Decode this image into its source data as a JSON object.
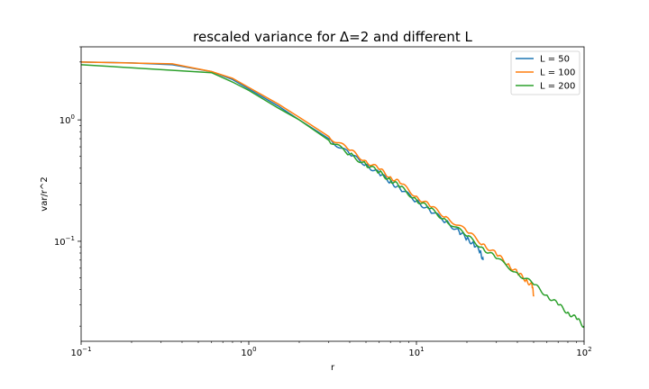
{
  "chart_data": {
    "type": "line",
    "title": "rescaled variance for Δ=2 and different L",
    "xlabel": "r",
    "ylabel": "var/r^2",
    "xscale": "log",
    "yscale": "log",
    "xlim": [
      0.1,
      100
    ],
    "ylim": [
      0.015,
      4.0
    ],
    "x_ticks": [
      {
        "value": 0.1,
        "base": "10",
        "exp": "−1"
      },
      {
        "value": 1,
        "base": "10",
        "exp": "0"
      },
      {
        "value": 10,
        "base": "10",
        "exp": "1"
      },
      {
        "value": 100,
        "base": "10",
        "exp": "2"
      }
    ],
    "y_ticks": [
      {
        "value": 0.1,
        "base": "10",
        "exp": "−1"
      },
      {
        "value": 1,
        "base": "10",
        "exp": "0"
      }
    ],
    "grid": false,
    "legend": "top-right",
    "series": [
      {
        "name": "L = 50",
        "color": "#1f77b4",
        "x": [
          0.1,
          0.2,
          0.35,
          0.6,
          0.8,
          1.0,
          1.5,
          2.0,
          3.0,
          4.0,
          5.0,
          6.0,
          7.0,
          8.0,
          10.0,
          12.0,
          15.0,
          18.0,
          20.0,
          22.0,
          24.0,
          25.0
        ],
        "y": [
          3.0,
          2.95,
          2.85,
          2.5,
          2.15,
          1.8,
          1.3,
          1.0,
          0.7,
          0.52,
          0.43,
          0.36,
          0.31,
          0.27,
          0.215,
          0.18,
          0.145,
          0.12,
          0.105,
          0.095,
          0.082,
          0.07
        ]
      },
      {
        "name": "L = 100",
        "color": "#ff7f0e",
        "x": [
          0.1,
          0.35,
          0.6,
          0.8,
          1.0,
          1.5,
          2.0,
          3.0,
          4.0,
          5.0,
          6.0,
          7.0,
          8.0,
          10.0,
          12.0,
          15.0,
          20.0,
          25.0,
          30.0,
          35.0,
          40.0,
          45.0,
          49.0,
          50.0
        ],
        "y": [
          3.0,
          2.9,
          2.5,
          2.2,
          1.85,
          1.35,
          1.05,
          0.73,
          0.56,
          0.46,
          0.39,
          0.34,
          0.3,
          0.235,
          0.195,
          0.16,
          0.12,
          0.095,
          0.078,
          0.065,
          0.055,
          0.048,
          0.043,
          0.036
        ]
      },
      {
        "name": "L = 200",
        "color": "#2ca02c",
        "x": [
          0.1,
          0.6,
          0.8,
          1.0,
          1.5,
          2.0,
          3.0,
          4.0,
          5.0,
          6.0,
          7.0,
          8.0,
          10.0,
          12.0,
          15.0,
          20.0,
          25.0,
          30.0,
          40.0,
          50.0,
          60.0,
          70.0,
          80.0,
          90.0,
          100.0
        ],
        "y": [
          2.85,
          2.45,
          2.05,
          1.75,
          1.25,
          1.0,
          0.68,
          0.52,
          0.43,
          0.37,
          0.32,
          0.28,
          0.22,
          0.185,
          0.15,
          0.11,
          0.088,
          0.072,
          0.055,
          0.044,
          0.036,
          0.03,
          0.026,
          0.023,
          0.02
        ]
      }
    ]
  }
}
